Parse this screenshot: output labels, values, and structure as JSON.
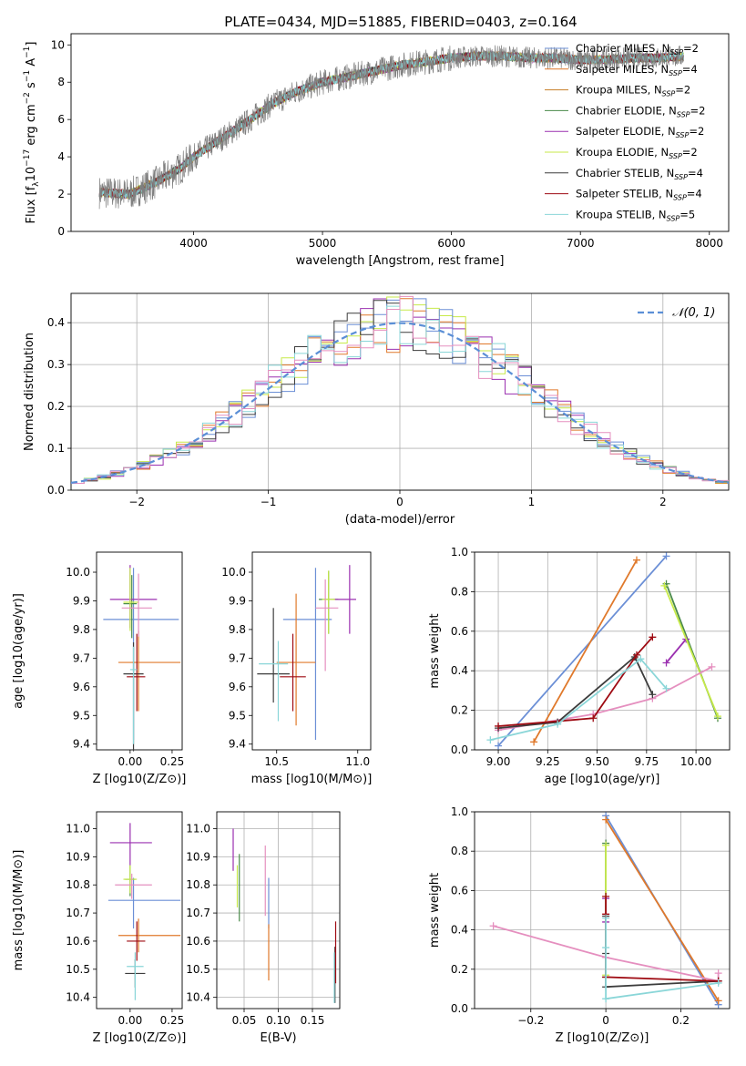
{
  "figure": {
    "title": "PLATE=0434, MJD=51885, FIBERID=0403, z=0.164"
  },
  "palette": [
    "#6b8fd6",
    "#e0792b",
    "#c77f2a",
    "#4a8a4a",
    "#9b30b0",
    "#c7ea4a",
    "#3d3d3d",
    "#9e0a12",
    "#8ad6d8",
    "#e58fbf"
  ],
  "chart_data": [
    {
      "id": "spectrum",
      "type": "line",
      "xlabel": "wavelength [Angstrom, rest frame]",
      "ylabel": "Flux [f_λ 10^-17 erg cm^-2 s^-1 A^-1]",
      "xlim": [
        3050,
        8150
      ],
      "ylim": [
        0,
        10.6
      ],
      "xticks": [
        4000,
        5000,
        6000,
        7000,
        8000
      ],
      "yticks": [
        0,
        2,
        4,
        6,
        8,
        10
      ],
      "data_color": "#7f7f7f",
      "continuum": {
        "x": [
          3270,
          3500,
          3700,
          3900,
          4000,
          4200,
          4400,
          4600,
          4800,
          5000,
          5200,
          5400,
          5600,
          5800,
          6000,
          6200,
          6400,
          6600,
          6800,
          7000,
          7200,
          7400,
          7600,
          7800
        ],
        "y": [
          2.1,
          2.0,
          2.6,
          3.4,
          4.0,
          4.9,
          5.8,
          6.8,
          7.5,
          8.0,
          8.3,
          8.6,
          8.9,
          9.1,
          9.3,
          9.4,
          9.4,
          9.3,
          9.3,
          9.2,
          9.2,
          9.3,
          9.3,
          9.4
        ]
      },
      "legend": [
        {
          "name": "Chabrier MILES, N",
          "sub": "SSP",
          "suffix": "=2",
          "color": "#6b8fd6"
        },
        {
          "name": "Salpeter MILES, N",
          "sub": "SSP",
          "suffix": "=4",
          "color": "#e0792b"
        },
        {
          "name": "Kroupa MILES, N",
          "sub": "SSP",
          "suffix": "=2",
          "color": "#c77f2a"
        },
        {
          "name": "Chabrier ELODIE, N",
          "sub": "SSP",
          "suffix": "=2",
          "color": "#4a8a4a"
        },
        {
          "name": "Salpeter ELODIE, N",
          "sub": "SSP",
          "suffix": "=2",
          "color": "#9b30b0"
        },
        {
          "name": "Kroupa ELODIE, N",
          "sub": "SSP",
          "suffix": "=2",
          "color": "#c7ea4a"
        },
        {
          "name": "Chabrier STELIB, N",
          "sub": "SSP",
          "suffix": "=4",
          "color": "#3d3d3d"
        },
        {
          "name": "Salpeter STELIB, N",
          "sub": "SSP",
          "suffix": "=4",
          "color": "#9e0a12"
        },
        {
          "name": "Kroupa STELIB, N",
          "sub": "SSP",
          "suffix": "=5",
          "color": "#8ad6d8"
        }
      ]
    },
    {
      "id": "residuals",
      "type": "histogram",
      "xlabel": "(data-model)/error",
      "ylabel": "Normed distribution",
      "xlim": [
        -2.5,
        2.5
      ],
      "ylim": [
        0,
        0.47
      ],
      "xticks": [
        -2,
        -1,
        0,
        1,
        2
      ],
      "yticks": [
        0.0,
        0.1,
        0.2,
        0.3,
        0.4
      ],
      "grid": true,
      "bins": {
        "start": -2.5,
        "width": 0.1,
        "count": 50
      },
      "series_colors": [
        "#9b30b0",
        "#e0792b",
        "#c7ea4a",
        "#6b8fd6",
        "#3d3d3d",
        "#8ad6d8",
        "#e58fbf"
      ],
      "gaussian": {
        "label": "𝒩(0, 1)",
        "mean": 0,
        "sigma": 1,
        "color": "#5b8fd6"
      }
    },
    {
      "id": "age-vs-Z",
      "type": "errorbar",
      "xlabel": "Z [log10(Z/Z⊙)]",
      "ylabel": "age [log10(age/yr)]",
      "xlim": [
        -0.2,
        0.31
      ],
      "ylim": [
        9.38,
        10.07
      ],
      "xticks": [
        0.0,
        0.25
      ],
      "yticks": [
        9.4,
        9.5,
        9.6,
        9.7,
        9.8,
        9.9,
        10.0
      ],
      "points": [
        {
          "x": 0.02,
          "y": 9.835,
          "xerr": [
            0.18,
            0.27
          ],
          "yerr": [
            0.42,
            0.18
          ],
          "color": "#6b8fd6"
        },
        {
          "x": 0.05,
          "y": 9.685,
          "xerr": [
            0.12,
            0.25
          ],
          "yerr": [
            0.17,
            0.11
          ],
          "color": "#e0792b"
        },
        {
          "x": 0.01,
          "y": 9.89,
          "xerr": [
            0.05,
            0.03
          ],
          "yerr": [
            0.12,
            0.1
          ],
          "color": "#4a8a4a"
        },
        {
          "x": 0.0,
          "y": 9.905,
          "xerr": [
            0.12,
            0.16
          ],
          "yerr": [
            0.1,
            0.12
          ],
          "color": "#9b30b0"
        },
        {
          "x": 0.0,
          "y": 9.895,
          "xerr": [
            0.04,
            0.05
          ],
          "yerr": [
            0.1,
            0.12
          ],
          "color": "#c7ea4a"
        },
        {
          "x": 0.05,
          "y": 9.875,
          "xerr": [
            0.1,
            0.08
          ],
          "yerr": [
            0.1,
            0.12
          ],
          "color": "#e58fbf"
        },
        {
          "x": 0.02,
          "y": 9.645,
          "xerr": [
            0.06,
            0.06
          ],
          "yerr": [
            0.27,
            0.11
          ],
          "color": "#3d3d3d"
        },
        {
          "x": 0.04,
          "y": 9.635,
          "xerr": [
            0.06,
            0.05
          ],
          "yerr": [
            0.12,
            0.15
          ],
          "color": "#9e0a12"
        },
        {
          "x": 0.02,
          "y": 9.66,
          "xerr": [
            0.02,
            0.02
          ],
          "yerr": [
            0.26,
            0.08
          ],
          "color": "#8ad6d8"
        }
      ]
    },
    {
      "id": "age-vs-mass",
      "type": "errorbar",
      "xlabel": "mass [log10(M/M⊙)]",
      "ylabel": "",
      "xlim": [
        10.35,
        11.08
      ],
      "ylim": [
        9.38,
        10.07
      ],
      "xticks": [
        10.5,
        11.0
      ],
      "yticks": [
        9.4,
        9.5,
        9.6,
        9.7,
        9.8,
        9.9,
        10.0
      ],
      "points": [
        {
          "x": 10.74,
          "y": 9.835,
          "xerr": [
            0.2,
            0.1
          ],
          "yerr": [
            0.42,
            0.18
          ],
          "color": "#6b8fd6"
        },
        {
          "x": 10.62,
          "y": 9.685,
          "xerr": [
            0.12,
            0.12
          ],
          "yerr": [
            0.22,
            0.24
          ],
          "color": "#e0792b"
        },
        {
          "x": 10.82,
          "y": 9.905,
          "xerr": [
            0.06,
            0.06
          ],
          "yerr": [
            0.12,
            0.1
          ],
          "color": "#4a8a4a"
        },
        {
          "x": 10.95,
          "y": 9.905,
          "xerr": [
            0.1,
            0.04
          ],
          "yerr": [
            0.12,
            0.12
          ],
          "color": "#9b30b0"
        },
        {
          "x": 10.82,
          "y": 9.905,
          "xerr": [
            0.04,
            0.04
          ],
          "yerr": [
            0.12,
            0.1
          ],
          "color": "#c7ea4a"
        },
        {
          "x": 10.8,
          "y": 9.875,
          "xerr": [
            0.06,
            0.08
          ],
          "yerr": [
            0.22,
            0.1
          ],
          "color": "#e58fbf"
        },
        {
          "x": 10.48,
          "y": 9.645,
          "xerr": [
            0.1,
            0.1
          ],
          "yerr": [
            0.1,
            0.23
          ],
          "color": "#3d3d3d"
        },
        {
          "x": 10.6,
          "y": 9.635,
          "xerr": [
            0.08,
            0.08
          ],
          "yerr": [
            0.12,
            0.15
          ],
          "color": "#9e0a12"
        },
        {
          "x": 10.51,
          "y": 9.68,
          "xerr": [
            0.12,
            0.06
          ],
          "yerr": [
            0.2,
            0.08
          ],
          "color": "#8ad6d8"
        }
      ]
    },
    {
      "id": "weight-vs-age",
      "type": "line",
      "xlabel": "age [log10(age/yr)]",
      "ylabel": "mass weight",
      "xlim": [
        8.88,
        10.17
      ],
      "ylim": [
        0,
        1
      ],
      "xticks": [
        9.0,
        9.25,
        9.5,
        9.75,
        10.0
      ],
      "yticks": [
        0.0,
        0.2,
        0.4,
        0.6,
        0.8,
        1.0
      ],
      "grid": true,
      "series": [
        {
          "color": "#6b8fd6",
          "x": [
            9.0,
            9.85
          ],
          "y": [
            0.02,
            0.98
          ]
        },
        {
          "color": "#e0792b",
          "x": [
            9.18,
            9.7
          ],
          "y": [
            0.04,
            0.96
          ]
        },
        {
          "color": "#4a8a4a",
          "x": [
            9.85,
            10.11
          ],
          "y": [
            0.84,
            0.16
          ]
        },
        {
          "color": "#9b30b0",
          "x": [
            9.85,
            9.95
          ],
          "y": [
            0.44,
            0.56
          ]
        },
        {
          "color": "#c7ea4a",
          "x": [
            9.84,
            10.11
          ],
          "y": [
            0.83,
            0.17
          ]
        },
        {
          "color": "#e58fbf",
          "x": [
            9.0,
            9.48,
            9.78,
            10.08
          ],
          "y": [
            0.1,
            0.18,
            0.26,
            0.42
          ]
        },
        {
          "color": "#3d3d3d",
          "x": [
            9.0,
            9.3,
            9.69,
            9.78
          ],
          "y": [
            0.11,
            0.14,
            0.47,
            0.28
          ]
        },
        {
          "color": "#9e0a12",
          "x": [
            9.0,
            9.48,
            9.7,
            9.78
          ],
          "y": [
            0.12,
            0.16,
            0.48,
            0.57
          ]
        },
        {
          "color": "#8ad6d8",
          "x": [
            8.96,
            9.3,
            9.72,
            9.85
          ],
          "y": [
            0.05,
            0.13,
            0.46,
            0.31
          ]
        }
      ]
    },
    {
      "id": "mass-vs-Z",
      "type": "errorbar",
      "xlabel": "Z [log10(Z/Z⊙)]",
      "ylabel": "mass [log10(M/M⊙)]",
      "xlim": [
        -0.2,
        0.31
      ],
      "ylim": [
        10.36,
        11.06
      ],
      "xticks": [
        0.0,
        0.25
      ],
      "yticks": [
        10.4,
        10.5,
        10.6,
        10.7,
        10.8,
        10.9,
        11.0
      ],
      "points": [
        {
          "x": 0.02,
          "y": 10.745,
          "xerr": [
            0.15,
            0.28
          ],
          "yerr": [
            0.1,
            0.08
          ],
          "color": "#6b8fd6"
        },
        {
          "x": 0.05,
          "y": 10.62,
          "xerr": [
            0.12,
            0.25
          ],
          "yerr": [
            0.06,
            0.06
          ],
          "color": "#e0792b"
        },
        {
          "x": 0.0,
          "y": 10.82,
          "xerr": [
            0.03,
            0.03
          ],
          "yerr": [
            0.06,
            0.05
          ],
          "color": "#4a8a4a"
        },
        {
          "x": 0.0,
          "y": 10.95,
          "xerr": [
            0.12,
            0.13
          ],
          "yerr": [
            0.08,
            0.07
          ],
          "color": "#9b30b0"
        },
        {
          "x": 0.0,
          "y": 10.82,
          "xerr": [
            0.04,
            0.04
          ],
          "yerr": [
            0.05,
            0.05
          ],
          "color": "#c7ea4a"
        },
        {
          "x": 0.01,
          "y": 10.8,
          "xerr": [
            0.1,
            0.12
          ],
          "yerr": [
            0.05,
            0.04
          ],
          "color": "#e58fbf"
        },
        {
          "x": 0.03,
          "y": 10.485,
          "xerr": [
            0.06,
            0.06
          ],
          "yerr": [
            0.05,
            0.05
          ],
          "color": "#3d3d3d"
        },
        {
          "x": 0.04,
          "y": 10.6,
          "xerr": [
            0.06,
            0.05
          ],
          "yerr": [
            0.07,
            0.07
          ],
          "color": "#9e0a12"
        },
        {
          "x": 0.03,
          "y": 10.51,
          "xerr": [
            0.05,
            0.05
          ],
          "yerr": [
            0.12,
            0.05
          ],
          "color": "#8ad6d8"
        }
      ]
    },
    {
      "id": "mass-vs-EBV",
      "type": "errorbar",
      "xlabel": "E(B-V)",
      "ylabel": "",
      "xlim": [
        0.01,
        0.19
      ],
      "ylim": [
        10.36,
        11.06
      ],
      "xticks": [
        0.05,
        0.1,
        0.15
      ],
      "yticks": [
        10.4,
        10.5,
        10.6,
        10.7,
        10.8,
        10.9,
        11.0
      ],
      "grid": true,
      "points": [
        {
          "x": 0.086,
          "y": 10.745,
          "xerr": [
            0,
            0
          ],
          "yerr": [
            0.1,
            0.08
          ],
          "color": "#6b8fd6"
        },
        {
          "x": 0.086,
          "y": 10.56,
          "xerr": [
            0,
            0
          ],
          "yerr": [
            0.1,
            0.1
          ],
          "color": "#e0792b"
        },
        {
          "x": 0.043,
          "y": 10.82,
          "xerr": [
            0,
            0
          ],
          "yerr": [
            0.15,
            0.09
          ],
          "color": "#4a8a4a"
        },
        {
          "x": 0.034,
          "y": 10.92,
          "xerr": [
            0,
            0
          ],
          "yerr": [
            0.07,
            0.08
          ],
          "color": "#9b30b0"
        },
        {
          "x": 0.04,
          "y": 10.79,
          "xerr": [
            0,
            0
          ],
          "yerr": [
            0.07,
            0.08
          ],
          "color": "#c7ea4a"
        },
        {
          "x": 0.081,
          "y": 10.82,
          "xerr": [
            0,
            0
          ],
          "yerr": [
            0.13,
            0.12
          ],
          "color": "#e58fbf"
        },
        {
          "x": 0.183,
          "y": 10.48,
          "xerr": [
            0,
            0
          ],
          "yerr": [
            0.1,
            0.1
          ],
          "color": "#3d3d3d"
        },
        {
          "x": 0.184,
          "y": 10.55,
          "xerr": [
            0,
            0
          ],
          "yerr": [
            0.1,
            0.12
          ],
          "color": "#9e0a12"
        },
        {
          "x": 0.182,
          "y": 10.47,
          "xerr": [
            0,
            0
          ],
          "yerr": [
            0.09,
            0.09
          ],
          "color": "#8ad6d8"
        }
      ]
    },
    {
      "id": "weight-vs-Z",
      "type": "line",
      "xlabel": "Z [log10(Z/Z⊙)]",
      "ylabel": "mass weight",
      "xlim": [
        -0.35,
        0.33
      ],
      "ylim": [
        0,
        1
      ],
      "xticks": [
        -0.2,
        0.0,
        0.2
      ],
      "yticks": [
        0.0,
        0.2,
        0.4,
        0.6,
        0.8,
        1.0
      ],
      "grid": true,
      "series": [
        {
          "color": "#6b8fd6",
          "x": [
            0.0,
            0.3
          ],
          "y": [
            0.98,
            0.02
          ]
        },
        {
          "color": "#e0792b",
          "x": [
            0.0,
            0.3
          ],
          "y": [
            0.96,
            0.04
          ]
        },
        {
          "color": "#4a8a4a",
          "x": [
            0.0,
            0.0
          ],
          "y": [
            0.84,
            0.16
          ]
        },
        {
          "color": "#9b30b0",
          "x": [
            0.0,
            0.0
          ],
          "y": [
            0.56,
            0.44
          ]
        },
        {
          "color": "#c7ea4a",
          "x": [
            0.0,
            0.0
          ],
          "y": [
            0.83,
            0.17
          ]
        },
        {
          "color": "#e58fbf",
          "x": [
            -0.3,
            0.0,
            0.3,
            0.3
          ],
          "y": [
            0.42,
            0.26,
            0.14,
            0.18
          ]
        },
        {
          "color": "#3d3d3d",
          "x": [
            0.0,
            0.0,
            0.0,
            0.3
          ],
          "y": [
            0.47,
            0.28,
            0.11,
            0.14
          ]
        },
        {
          "color": "#9e0a12",
          "x": [
            0.0,
            0.0,
            0.0,
            0.3
          ],
          "y": [
            0.57,
            0.48,
            0.16,
            0.14
          ]
        },
        {
          "color": "#8ad6d8",
          "x": [
            0.0,
            0.0,
            0.0,
            0.3
          ],
          "y": [
            0.46,
            0.31,
            0.05,
            0.13
          ]
        }
      ]
    }
  ]
}
